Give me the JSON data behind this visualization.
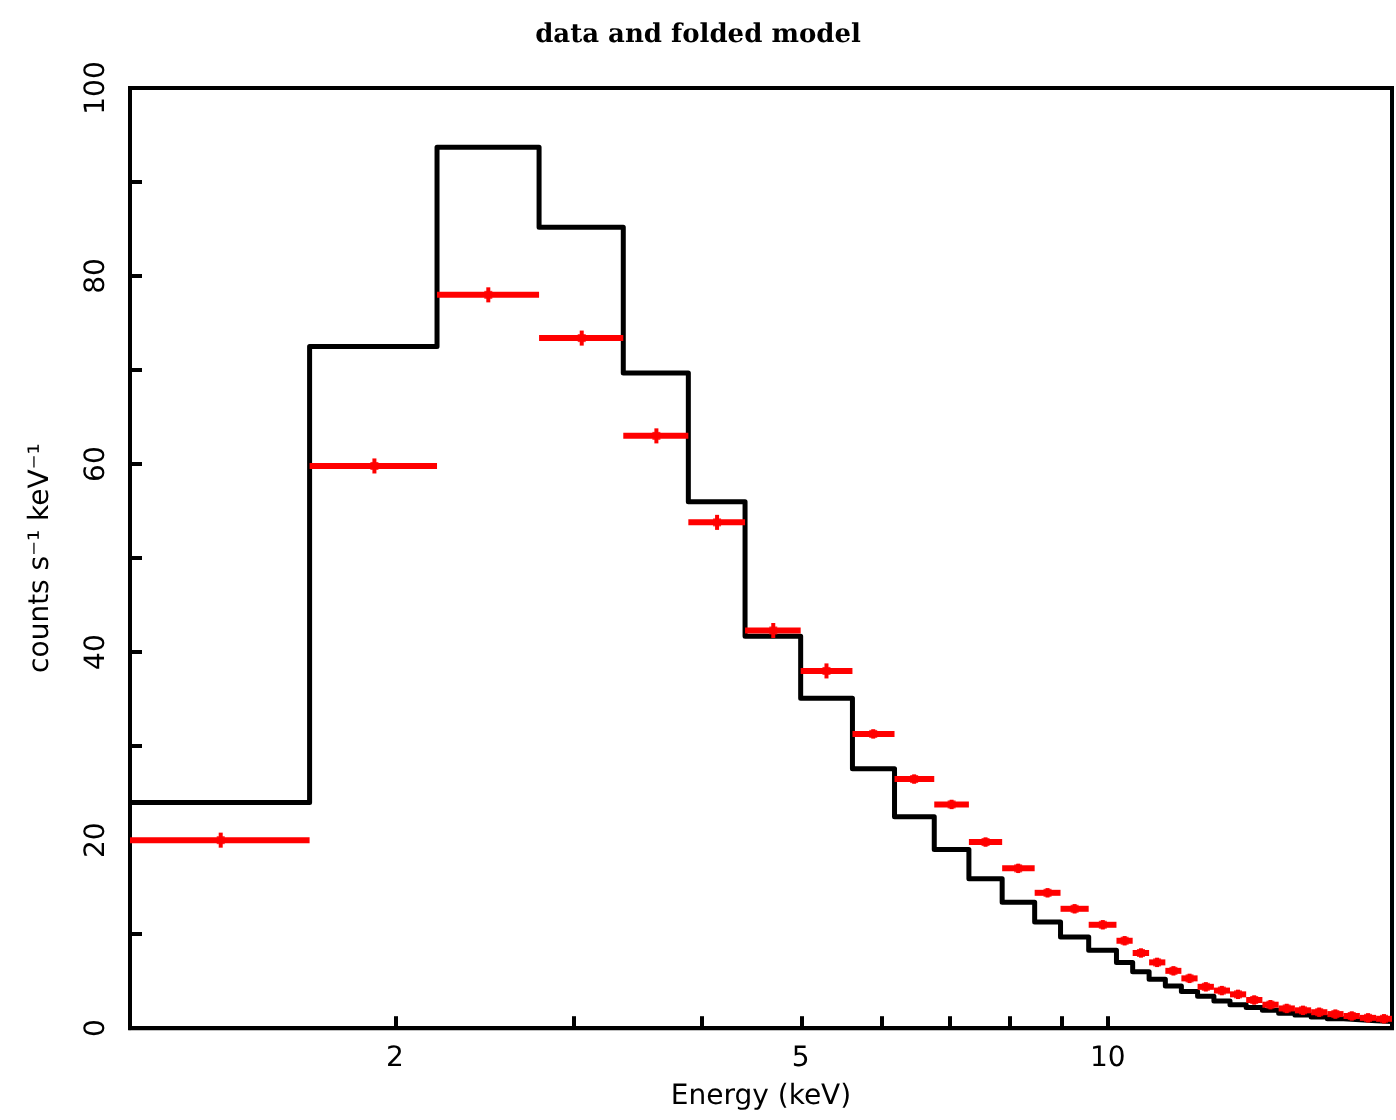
{
  "chart_data": {
    "type": "scatter",
    "title": "data and folded model",
    "xlabel": "Energy (keV)",
    "ylabel": "counts s⁻¹ keV⁻¹",
    "log": "x",
    "xlim": [
      1.1,
      19
    ],
    "ylim": [
      0,
      100
    ],
    "xticks": [
      2,
      {
        "value": 3,
        "label": null
      },
      {
        "value": 4,
        "label": null
      },
      5,
      {
        "value": 6,
        "label": null
      },
      {
        "value": 7,
        "label": null
      },
      {
        "value": 8,
        "label": null
      },
      {
        "value": 9,
        "label": null
      },
      10
    ],
    "yticks": [
      0,
      {
        "value": 10,
        "label": null
      },
      20,
      {
        "value": 30,
        "label": null
      },
      40,
      {
        "value": 50,
        "label": null
      },
      60,
      {
        "value": 70,
        "label": null
      },
      80,
      {
        "value": 90,
        "label": null
      },
      100
    ],
    "grid": false,
    "series": [
      {
        "color": "#ff0000",
        "marker": "square",
        "x": [
          1.35,
          1.91,
          2.47,
          3.05,
          3.61,
          4.14,
          4.7,
          5.3,
          5.89,
          6.46,
          7.03,
          7.59,
          8.17,
          8.73,
          9.28,
          9.89,
          10.39,
          10.78,
          11.18,
          11.6,
          12.03,
          12.48,
          12.94,
          13.42,
          13.92,
          14.44,
          14.98,
          15.54,
          16.12,
          16.72,
          17.35,
          18.0,
          18.66
        ],
        "values": [
          20,
          59.8,
          78,
          73.4,
          63,
          53.8,
          42.3,
          38,
          31.3,
          26.5,
          23.8,
          19.8,
          17.0,
          14.4,
          12.7,
          11.0,
          9.3,
          8.0,
          7.0,
          6.1,
          5.3,
          4.4,
          4.0,
          3.6,
          3.0,
          2.5,
          2.1,
          1.9,
          1.7,
          1.5,
          1.3,
          1.1,
          1.0
        ],
        "errors": [
          0.8,
          0.8,
          0.8,
          0.8,
          0.8,
          0.8,
          0.8,
          0.8,
          0.5,
          0.5,
          0.5,
          0.5,
          0.5,
          0.5,
          0.5,
          0.5,
          0.5,
          0.5,
          0.5,
          0.5,
          0.5,
          0.5,
          0.5,
          0.5,
          0.5,
          0.5,
          0.5,
          0.5,
          0.5,
          0.5,
          0.5,
          0.5,
          0.5
        ],
        "xerrors": [
          [
            1.1,
            1.65
          ],
          [
            1.65,
            2.2
          ],
          [
            2.2,
            2.77
          ],
          [
            2.77,
            3.35
          ],
          [
            3.35,
            3.88
          ],
          [
            3.88,
            4.41
          ],
          [
            4.41,
            5.0
          ],
          [
            5.0,
            5.62
          ],
          [
            5.62,
            6.18
          ],
          [
            6.18,
            6.76
          ],
          [
            6.76,
            7.31
          ],
          [
            7.31,
            7.88
          ],
          [
            7.88,
            8.48
          ],
          [
            8.48,
            8.99
          ],
          [
            8.99,
            9.58
          ],
          [
            9.58,
            10.2
          ],
          [
            10.2,
            10.58
          ],
          [
            10.58,
            10.98
          ],
          [
            10.98,
            11.39
          ],
          [
            11.39,
            11.81
          ],
          [
            11.81,
            12.25
          ],
          [
            12.25,
            12.71
          ],
          [
            12.71,
            13.18
          ],
          [
            13.18,
            13.67
          ],
          [
            13.67,
            14.18
          ],
          [
            14.18,
            14.71
          ],
          [
            14.71,
            15.26
          ],
          [
            15.26,
            15.83
          ],
          [
            15.83,
            16.42
          ],
          [
            16.42,
            17.03
          ],
          [
            17.03,
            17.67
          ],
          [
            17.67,
            18.33
          ],
          [
            18.33,
            19.0
          ]
        ]
      },
      {
        "type": "step",
        "color": "#000000",
        "marker": "none",
        "x": [
          1.1,
          1.65,
          2.2,
          2.77,
          3.35,
          3.88,
          4.41,
          5.0,
          5.62,
          6.18,
          6.76,
          7.31,
          7.88,
          8.48,
          8.99,
          9.58,
          10.2,
          10.58,
          10.98,
          11.39,
          11.81,
          12.25,
          12.71,
          13.18,
          13.67,
          14.18,
          14.71,
          15.26,
          15.83,
          16.42,
          17.03,
          17.67,
          18.33,
          19.0
        ],
        "values": [
          24,
          72.5,
          93.7,
          85.2,
          69.7,
          56,
          41.7,
          35.1,
          27.6,
          22.5,
          19.0,
          15.9,
          13.4,
          11.3,
          9.7,
          8.3,
          7.0,
          6.0,
          5.2,
          4.5,
          3.9,
          3.4,
          2.9,
          2.5,
          2.2,
          1.9,
          1.6,
          1.4,
          1.2,
          1.0,
          0.9,
          0.8,
          0.7,
          0.7
        ]
      }
    ]
  }
}
